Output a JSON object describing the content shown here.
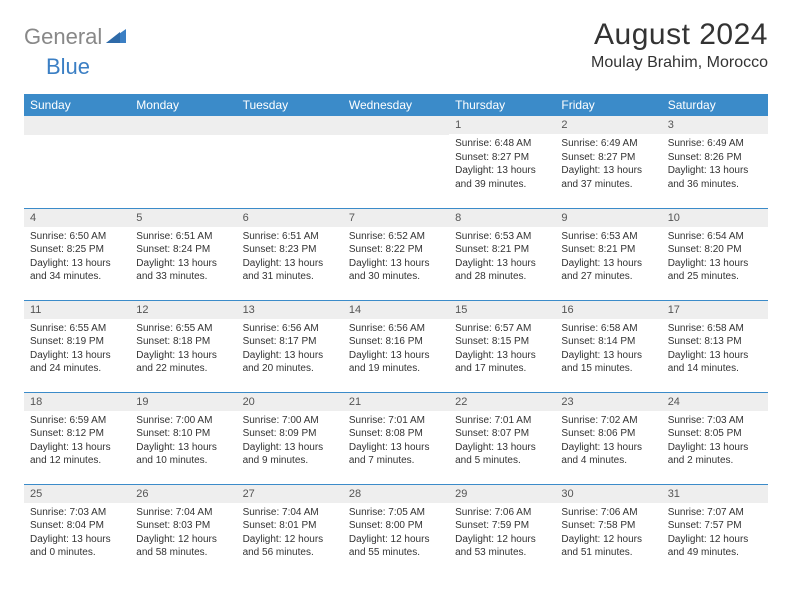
{
  "brand": {
    "part1": "General",
    "part2": "Blue",
    "color_general": "#888888",
    "color_blue": "#3b7fc4"
  },
  "title": "August 2024",
  "location": "Moulay Brahim, Morocco",
  "header_bg": "#3b8bc9",
  "header_fg": "#ffffff",
  "daynum_bg": "#eeeeee",
  "border_color": "#3b8bc9",
  "text_color": "#333333",
  "cell_fontsize": 10,
  "weekdays": [
    "Sunday",
    "Monday",
    "Tuesday",
    "Wednesday",
    "Thursday",
    "Friday",
    "Saturday"
  ],
  "weeks": [
    [
      null,
      null,
      null,
      null,
      {
        "n": "1",
        "sunrise": "Sunrise: 6:48 AM",
        "sunset": "Sunset: 8:27 PM",
        "daylight": "Daylight: 13 hours and 39 minutes."
      },
      {
        "n": "2",
        "sunrise": "Sunrise: 6:49 AM",
        "sunset": "Sunset: 8:27 PM",
        "daylight": "Daylight: 13 hours and 37 minutes."
      },
      {
        "n": "3",
        "sunrise": "Sunrise: 6:49 AM",
        "sunset": "Sunset: 8:26 PM",
        "daylight": "Daylight: 13 hours and 36 minutes."
      }
    ],
    [
      {
        "n": "4",
        "sunrise": "Sunrise: 6:50 AM",
        "sunset": "Sunset: 8:25 PM",
        "daylight": "Daylight: 13 hours and 34 minutes."
      },
      {
        "n": "5",
        "sunrise": "Sunrise: 6:51 AM",
        "sunset": "Sunset: 8:24 PM",
        "daylight": "Daylight: 13 hours and 33 minutes."
      },
      {
        "n": "6",
        "sunrise": "Sunrise: 6:51 AM",
        "sunset": "Sunset: 8:23 PM",
        "daylight": "Daylight: 13 hours and 31 minutes."
      },
      {
        "n": "7",
        "sunrise": "Sunrise: 6:52 AM",
        "sunset": "Sunset: 8:22 PM",
        "daylight": "Daylight: 13 hours and 30 minutes."
      },
      {
        "n": "8",
        "sunrise": "Sunrise: 6:53 AM",
        "sunset": "Sunset: 8:21 PM",
        "daylight": "Daylight: 13 hours and 28 minutes."
      },
      {
        "n": "9",
        "sunrise": "Sunrise: 6:53 AM",
        "sunset": "Sunset: 8:21 PM",
        "daylight": "Daylight: 13 hours and 27 minutes."
      },
      {
        "n": "10",
        "sunrise": "Sunrise: 6:54 AM",
        "sunset": "Sunset: 8:20 PM",
        "daylight": "Daylight: 13 hours and 25 minutes."
      }
    ],
    [
      {
        "n": "11",
        "sunrise": "Sunrise: 6:55 AM",
        "sunset": "Sunset: 8:19 PM",
        "daylight": "Daylight: 13 hours and 24 minutes."
      },
      {
        "n": "12",
        "sunrise": "Sunrise: 6:55 AM",
        "sunset": "Sunset: 8:18 PM",
        "daylight": "Daylight: 13 hours and 22 minutes."
      },
      {
        "n": "13",
        "sunrise": "Sunrise: 6:56 AM",
        "sunset": "Sunset: 8:17 PM",
        "daylight": "Daylight: 13 hours and 20 minutes."
      },
      {
        "n": "14",
        "sunrise": "Sunrise: 6:56 AM",
        "sunset": "Sunset: 8:16 PM",
        "daylight": "Daylight: 13 hours and 19 minutes."
      },
      {
        "n": "15",
        "sunrise": "Sunrise: 6:57 AM",
        "sunset": "Sunset: 8:15 PM",
        "daylight": "Daylight: 13 hours and 17 minutes."
      },
      {
        "n": "16",
        "sunrise": "Sunrise: 6:58 AM",
        "sunset": "Sunset: 8:14 PM",
        "daylight": "Daylight: 13 hours and 15 minutes."
      },
      {
        "n": "17",
        "sunrise": "Sunrise: 6:58 AM",
        "sunset": "Sunset: 8:13 PM",
        "daylight": "Daylight: 13 hours and 14 minutes."
      }
    ],
    [
      {
        "n": "18",
        "sunrise": "Sunrise: 6:59 AM",
        "sunset": "Sunset: 8:12 PM",
        "daylight": "Daylight: 13 hours and 12 minutes."
      },
      {
        "n": "19",
        "sunrise": "Sunrise: 7:00 AM",
        "sunset": "Sunset: 8:10 PM",
        "daylight": "Daylight: 13 hours and 10 minutes."
      },
      {
        "n": "20",
        "sunrise": "Sunrise: 7:00 AM",
        "sunset": "Sunset: 8:09 PM",
        "daylight": "Daylight: 13 hours and 9 minutes."
      },
      {
        "n": "21",
        "sunrise": "Sunrise: 7:01 AM",
        "sunset": "Sunset: 8:08 PM",
        "daylight": "Daylight: 13 hours and 7 minutes."
      },
      {
        "n": "22",
        "sunrise": "Sunrise: 7:01 AM",
        "sunset": "Sunset: 8:07 PM",
        "daylight": "Daylight: 13 hours and 5 minutes."
      },
      {
        "n": "23",
        "sunrise": "Sunrise: 7:02 AM",
        "sunset": "Sunset: 8:06 PM",
        "daylight": "Daylight: 13 hours and 4 minutes."
      },
      {
        "n": "24",
        "sunrise": "Sunrise: 7:03 AM",
        "sunset": "Sunset: 8:05 PM",
        "daylight": "Daylight: 13 hours and 2 minutes."
      }
    ],
    [
      {
        "n": "25",
        "sunrise": "Sunrise: 7:03 AM",
        "sunset": "Sunset: 8:04 PM",
        "daylight": "Daylight: 13 hours and 0 minutes."
      },
      {
        "n": "26",
        "sunrise": "Sunrise: 7:04 AM",
        "sunset": "Sunset: 8:03 PM",
        "daylight": "Daylight: 12 hours and 58 minutes."
      },
      {
        "n": "27",
        "sunrise": "Sunrise: 7:04 AM",
        "sunset": "Sunset: 8:01 PM",
        "daylight": "Daylight: 12 hours and 56 minutes."
      },
      {
        "n": "28",
        "sunrise": "Sunrise: 7:05 AM",
        "sunset": "Sunset: 8:00 PM",
        "daylight": "Daylight: 12 hours and 55 minutes."
      },
      {
        "n": "29",
        "sunrise": "Sunrise: 7:06 AM",
        "sunset": "Sunset: 7:59 PM",
        "daylight": "Daylight: 12 hours and 53 minutes."
      },
      {
        "n": "30",
        "sunrise": "Sunrise: 7:06 AM",
        "sunset": "Sunset: 7:58 PM",
        "daylight": "Daylight: 12 hours and 51 minutes."
      },
      {
        "n": "31",
        "sunrise": "Sunrise: 7:07 AM",
        "sunset": "Sunset: 7:57 PM",
        "daylight": "Daylight: 12 hours and 49 minutes."
      }
    ]
  ]
}
